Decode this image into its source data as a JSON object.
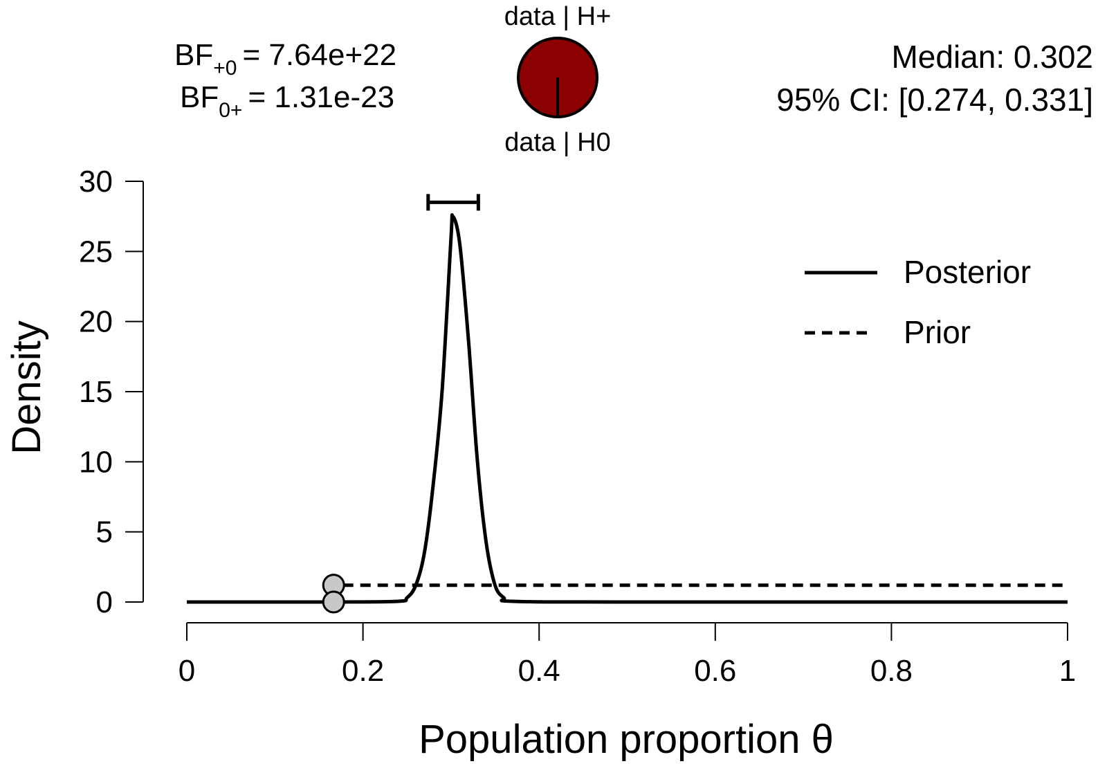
{
  "chart_data": {
    "type": "line",
    "xlabel": "Population proportion θ",
    "ylabel": "Density",
    "xlim": [
      0,
      1
    ],
    "ylim": [
      0,
      30
    ],
    "xticks": [
      "0",
      "0.2",
      "0.4",
      "0.6",
      "0.8",
      "1"
    ],
    "yticks": [
      "0",
      "5",
      "10",
      "15",
      "20",
      "25",
      "30"
    ],
    "legend_position": "top-right",
    "grid": false,
    "series": [
      {
        "name": "Posterior",
        "style": "solid",
        "x": [
          0.0,
          0.1667,
          0.24,
          0.25,
          0.26,
          0.27,
          0.28,
          0.29,
          0.3,
          0.302,
          0.31,
          0.32,
          0.33,
          0.34,
          0.35,
          0.36,
          0.37,
          0.5,
          1.0
        ],
        "y": [
          0.0,
          0.0,
          0.05,
          0.3,
          1.2,
          3.6,
          8.5,
          15.2,
          26.0,
          27.5,
          25.5,
          18.5,
          10.0,
          4.2,
          1.2,
          0.3,
          0.05,
          0.0,
          0.0
        ]
      },
      {
        "name": "Prior",
        "style": "dashed",
        "x": [
          0.0,
          0.1667,
          0.1667,
          1.0
        ],
        "y": [
          0.0,
          0.0,
          1.2,
          1.2
        ]
      }
    ],
    "points": [
      {
        "x": 0.1667,
        "y": 1.2
      },
      {
        "x": 0.1667,
        "y": 0.0
      }
    ],
    "ci_bar": {
      "lower": 0.274,
      "upper": 0.331,
      "y": 28.5
    },
    "bayes_factors": {
      "bf10_prefix": "BF",
      "bf10_sub": "+0",
      "bf10_value": "= 7.64e+22",
      "bf01_prefix": "BF",
      "bf01_sub": "0+",
      "bf01_value": "= 1.31e-23"
    },
    "summary": {
      "median": "Median: 0.302",
      "ci": "95% CI: [0.274, 0.331]"
    },
    "pie": {
      "top_label": "data | H+",
      "bottom_label": "data | H0",
      "fraction_h1": 1.0,
      "color_h1": "#8b0000",
      "color_h0": "#ffffff"
    },
    "colors": {
      "line": "#000000",
      "point_fill": "#c8c8c8"
    }
  }
}
